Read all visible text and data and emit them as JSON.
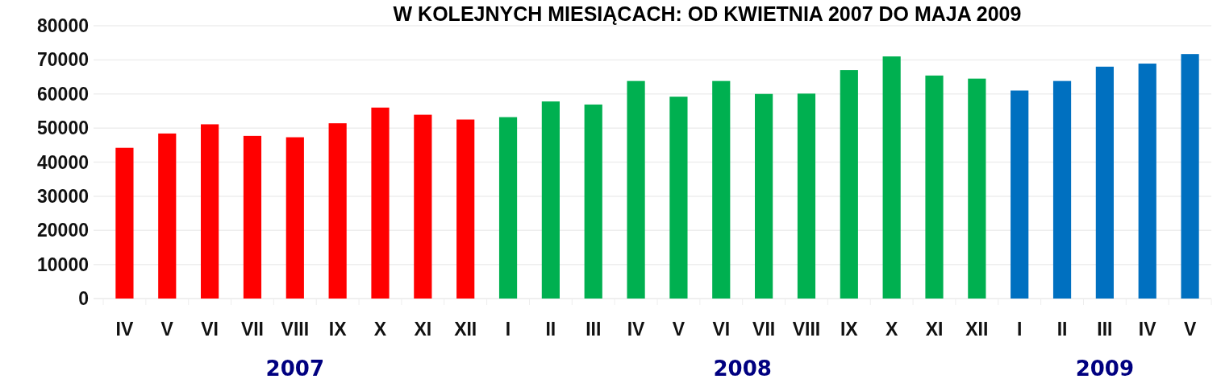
{
  "chart_data": {
    "type": "bar",
    "title": "W KOLEJNYCH MIESIĄCACH: OD KWIETNIA 2007 DO MAJA 2009",
    "categories": [
      "IV",
      "V",
      "VI",
      "VII",
      "VIII",
      "IX",
      "X",
      "XI",
      "XII",
      "I",
      "II",
      "III",
      "IV",
      "V",
      "VI",
      "VII",
      "VIII",
      "IX",
      "X",
      "XI",
      "XII",
      "I",
      "II",
      "III",
      "IV",
      "V"
    ],
    "values": [
      44200,
      48400,
      51100,
      47700,
      47300,
      51400,
      56000,
      53900,
      52500,
      53200,
      57800,
      56900,
      63800,
      59200,
      63800,
      60000,
      60100,
      67000,
      71000,
      65400,
      64500,
      61000,
      63800,
      68000,
      68900,
      71700
    ],
    "colors": [
      "#ff0000",
      "#ff0000",
      "#ff0000",
      "#ff0000",
      "#ff0000",
      "#ff0000",
      "#ff0000",
      "#ff0000",
      "#ff0000",
      "#00b050",
      "#00b050",
      "#00b050",
      "#00b050",
      "#00b050",
      "#00b050",
      "#00b050",
      "#00b050",
      "#00b050",
      "#00b050",
      "#00b050",
      "#00b050",
      "#0070c0",
      "#0070c0",
      "#0070c0",
      "#0070c0",
      "#0070c0"
    ],
    "ylim": [
      0,
      80000
    ],
    "yticks": [
      0,
      10000,
      20000,
      30000,
      40000,
      50000,
      60000,
      70000,
      80000
    ],
    "grid": "y",
    "annotations": [
      "2007",
      "2008",
      "2009"
    ]
  }
}
